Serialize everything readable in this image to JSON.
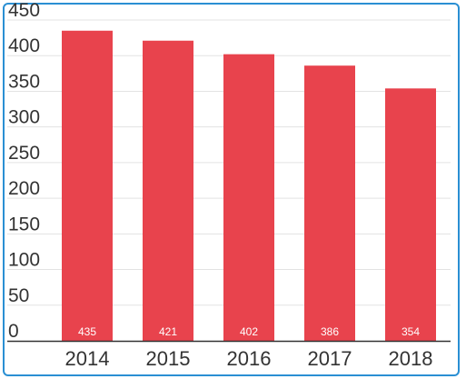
{
  "colors": {
    "bar": "#e8434d",
    "frame": "#2a8fd3",
    "grid": "#e3e3e3",
    "axis": "#333333",
    "text": "#333333",
    "data_label": "#ffffff"
  },
  "chart_data": {
    "type": "bar",
    "categories": [
      "2014",
      "2015",
      "2016",
      "2017",
      "2018"
    ],
    "values": [
      435,
      421,
      402,
      386,
      354
    ],
    "data_labels": [
      "435",
      "421",
      "402",
      "386",
      "354"
    ],
    "title": "",
    "xlabel": "",
    "ylabel": "",
    "ylim": [
      0,
      450
    ],
    "yticks": [
      0,
      50,
      100,
      150,
      200,
      250,
      300,
      350,
      400,
      450
    ],
    "ytick_labels": [
      "0",
      "50",
      "100",
      "150",
      "200",
      "250",
      "300",
      "350",
      "400",
      "450"
    ],
    "grid": true,
    "legend": "none"
  }
}
